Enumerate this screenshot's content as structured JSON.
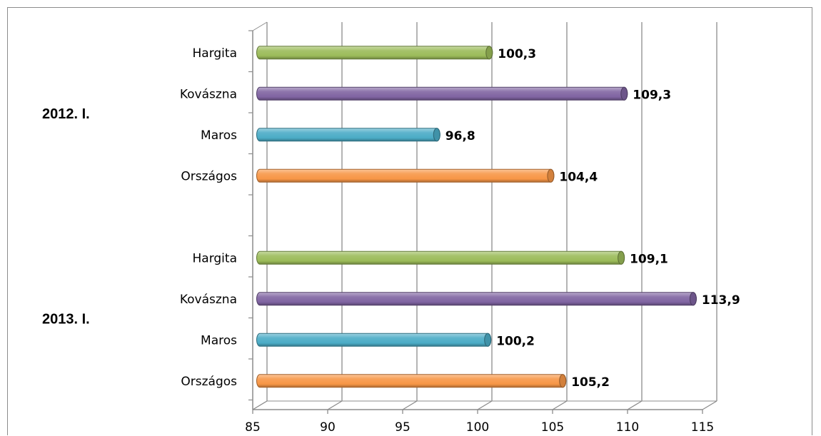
{
  "chart_data": {
    "type": "bar",
    "orientation": "horizontal",
    "title": "",
    "xlabel": "",
    "ylabel": "",
    "xlim": [
      85,
      115
    ],
    "xticks": [
      85,
      90,
      95,
      100,
      105,
      110,
      115
    ],
    "xtick_labels": [
      "85",
      "90",
      "95",
      "100",
      "105",
      "110",
      "115"
    ],
    "grid": true,
    "legend": "none",
    "groups": [
      {
        "label": "2012. I.",
        "categories": [
          "Hargita",
          "Kovászna",
          "Maros",
          "Országos"
        ],
        "values": [
          100.3,
          109.3,
          96.8,
          104.4
        ],
        "value_labels": [
          "100,3",
          "109,3",
          "96,8",
          "104,4"
        ]
      },
      {
        "label": "2013. I.",
        "categories": [
          "Hargita",
          "Kovászna",
          "Maros",
          "Országos"
        ],
        "values": [
          109.1,
          113.9,
          100.2,
          105.2
        ],
        "value_labels": [
          "109,1",
          "113,9",
          "100,2",
          "105,2"
        ]
      }
    ],
    "category_colors": {
      "Hargita": "#9bbb59",
      "Kovászna": "#8064a2",
      "Maros": "#4bacc6",
      "Országos": "#f79646"
    }
  }
}
